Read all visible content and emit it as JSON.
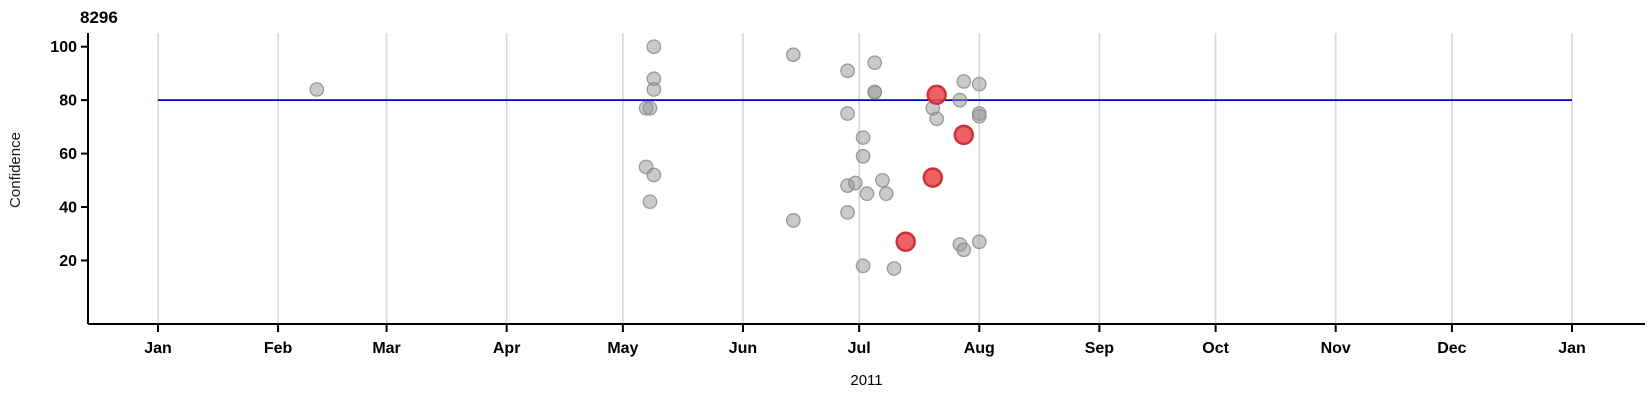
{
  "chart_data": {
    "type": "scatter",
    "title": "8296",
    "ylabel": "Confidence",
    "xlabel": "2011",
    "grid": "vertical-month-gridlines",
    "legend": "none",
    "x_axis": {
      "unit": "date",
      "range": [
        "2011-01-01",
        "2012-01-01"
      ],
      "tick_labels": [
        "Jan",
        "Feb",
        "Mar",
        "Apr",
        "May",
        "Jun",
        "Jul",
        "Aug",
        "Sep",
        "Oct",
        "Nov",
        "Dec",
        "Jan"
      ],
      "tick_day_of_year": [
        0,
        31,
        59,
        90,
        120,
        151,
        181,
        212,
        243,
        273,
        304,
        334,
        365
      ]
    },
    "y_axis": {
      "ticks": [
        20,
        40,
        60,
        80,
        100
      ],
      "range": [
        -4,
        105
      ]
    },
    "reference_line": {
      "y": 80,
      "color": "#0000cd"
    },
    "series": [
      {
        "name": "normal",
        "color": "#cacaca",
        "points": [
          {
            "date": "2011-02-11",
            "confidence": 84
          },
          {
            "date": "2011-05-07",
            "confidence": 77
          },
          {
            "date": "2011-05-07",
            "confidence": 55
          },
          {
            "date": "2011-05-08",
            "confidence": 77
          },
          {
            "date": "2011-05-08",
            "confidence": 42
          },
          {
            "date": "2011-05-09",
            "confidence": 100
          },
          {
            "date": "2011-05-09",
            "confidence": 88
          },
          {
            "date": "2011-05-09",
            "confidence": 84
          },
          {
            "date": "2011-05-09",
            "confidence": 52
          },
          {
            "date": "2011-06-14",
            "confidence": 97
          },
          {
            "date": "2011-06-14",
            "confidence": 35
          },
          {
            "date": "2011-06-28",
            "confidence": 91
          },
          {
            "date": "2011-06-28",
            "confidence": 75
          },
          {
            "date": "2011-06-28",
            "confidence": 48
          },
          {
            "date": "2011-06-28",
            "confidence": 38
          },
          {
            "date": "2011-06-30",
            "confidence": 49
          },
          {
            "date": "2011-07-02",
            "confidence": 66
          },
          {
            "date": "2011-07-02",
            "confidence": 59
          },
          {
            "date": "2011-07-02",
            "confidence": 18
          },
          {
            "date": "2011-07-03",
            "confidence": 45
          },
          {
            "date": "2011-07-05",
            "confidence": 94
          },
          {
            "date": "2011-07-05",
            "confidence": 83
          },
          {
            "date": "2011-07-05",
            "confidence": 83
          },
          {
            "date": "2011-07-07",
            "confidence": 50
          },
          {
            "date": "2011-07-08",
            "confidence": 45
          },
          {
            "date": "2011-07-10",
            "confidence": 17
          },
          {
            "date": "2011-07-20",
            "confidence": 77
          },
          {
            "date": "2011-07-21",
            "confidence": 73
          },
          {
            "date": "2011-07-27",
            "confidence": 80
          },
          {
            "date": "2011-07-27",
            "confidence": 26
          },
          {
            "date": "2011-07-28",
            "confidence": 87
          },
          {
            "date": "2011-07-28",
            "confidence": 24
          },
          {
            "date": "2011-08-01",
            "confidence": 86
          },
          {
            "date": "2011-08-01",
            "confidence": 75
          },
          {
            "date": "2011-08-01",
            "confidence": 74
          },
          {
            "date": "2011-08-01",
            "confidence": 27
          }
        ]
      },
      {
        "name": "highlighted",
        "color": "#ea4b50",
        "points": [
          {
            "date": "2011-07-13",
            "confidence": 27
          },
          {
            "date": "2011-07-20",
            "confidence": 51
          },
          {
            "date": "2011-07-21",
            "confidence": 82
          },
          {
            "date": "2011-07-28",
            "confidence": 67
          }
        ]
      }
    ]
  },
  "colors": {
    "background": "#ffffff",
    "axis": "#000000",
    "gridline": "#d8d8d8",
    "reference_line": "#0000cd",
    "point_gray_fill": "#969696",
    "point_gray_stroke": "#8c8c8c",
    "point_red_fill": "#ea4b50",
    "point_red_stroke": "#c93136"
  }
}
